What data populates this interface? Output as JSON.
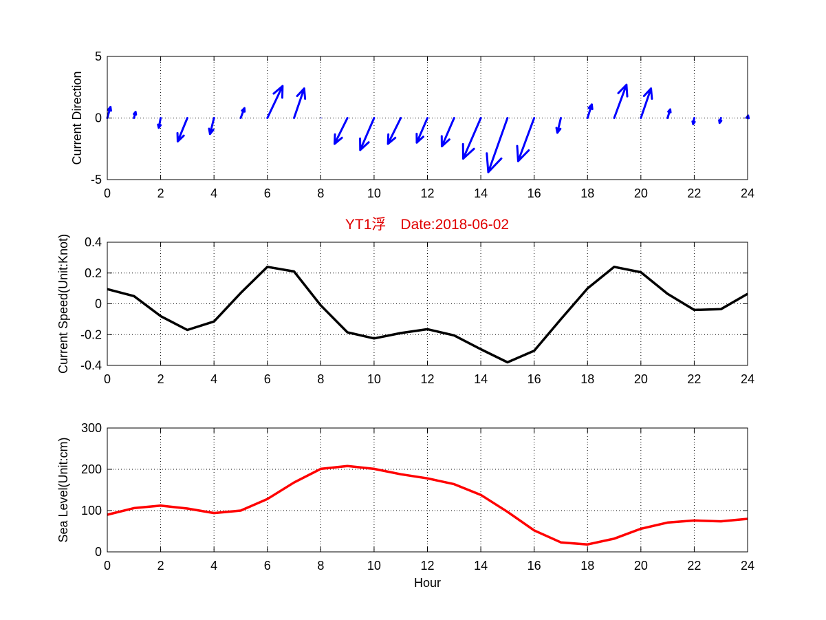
{
  "figure": {
    "title": "YT1浮　Date:2018-06-02",
    "title_color": "#e00000"
  },
  "chart_data": [
    {
      "type": "quiver",
      "title": "",
      "xlabel": "",
      "ylabel": "Current Direction",
      "xlim": [
        0,
        24
      ],
      "ylim": [
        -5,
        5
      ],
      "xticks": [
        "0",
        "2",
        "4",
        "6",
        "8",
        "10",
        "12",
        "14",
        "16",
        "18",
        "20",
        "22",
        "24"
      ],
      "yticks": [
        "-5",
        "0",
        "5"
      ],
      "grid": true,
      "color": "#0000ff",
      "x": [
        0,
        1,
        2,
        3,
        4,
        5,
        6,
        7,
        8,
        9,
        10,
        11,
        12,
        13,
        14,
        15,
        16,
        17,
        18,
        19,
        20,
        21,
        22,
        23,
        24
      ],
      "u": [
        0.12,
        0.06,
        -0.07,
        -0.36,
        -0.15,
        0.14,
        0.57,
        0.38,
        0.0,
        -0.48,
        -0.52,
        -0.48,
        -0.4,
        -0.46,
        -0.66,
        -0.72,
        -0.6,
        -0.13,
        0.16,
        0.46,
        0.38,
        0.1,
        -0.04,
        -0.05,
        0.02
      ],
      "v": [
        0.9,
        0.5,
        -0.8,
        -1.9,
        -1.3,
        0.8,
        2.6,
        2.4,
        0.0,
        -2.1,
        -2.6,
        -2.1,
        -2.0,
        -2.3,
        -3.3,
        -4.4,
        -3.5,
        -1.2,
        1.1,
        2.7,
        2.4,
        0.7,
        -0.5,
        -0.4,
        0.2
      ]
    },
    {
      "type": "line",
      "title": "",
      "xlabel": "",
      "ylabel": "Current Speed(Unit:Knot)",
      "xlim": [
        0,
        24
      ],
      "ylim": [
        -0.4,
        0.4
      ],
      "xticks": [
        "0",
        "2",
        "4",
        "6",
        "8",
        "10",
        "12",
        "14",
        "16",
        "18",
        "20",
        "22",
        "24"
      ],
      "yticks": [
        "-0.4",
        "-0.2",
        "0",
        "0.2",
        "0.4"
      ],
      "grid": true,
      "color": "#000000",
      "x": [
        0,
        1,
        2,
        3,
        4,
        5,
        6,
        7,
        8,
        9,
        10,
        11,
        12,
        13,
        14,
        15,
        16,
        17,
        18,
        19,
        20,
        21,
        22,
        23,
        24
      ],
      "y": [
        0.095,
        0.05,
        -0.08,
        -0.17,
        -0.115,
        0.07,
        0.24,
        0.21,
        -0.01,
        -0.185,
        -0.225,
        -0.19,
        -0.165,
        -0.205,
        -0.295,
        -0.38,
        -0.305,
        -0.1,
        0.1,
        0.24,
        0.205,
        0.065,
        -0.04,
        -0.035,
        0.065
      ]
    },
    {
      "type": "line",
      "title": "",
      "xlabel": "Hour",
      "ylabel": "Sea Level(Unit:cm)",
      "xlim": [
        0,
        24
      ],
      "ylim": [
        0,
        300
      ],
      "xticks": [
        "0",
        "2",
        "4",
        "6",
        "8",
        "10",
        "12",
        "14",
        "16",
        "18",
        "20",
        "22",
        "24"
      ],
      "yticks": [
        "0",
        "100",
        "200",
        "300"
      ],
      "grid": true,
      "color": "#ff0000",
      "x": [
        0,
        1,
        2,
        3,
        4,
        5,
        6,
        7,
        8,
        9,
        10,
        11,
        12,
        13,
        14,
        15,
        16,
        17,
        18,
        19,
        20,
        21,
        22,
        23,
        24
      ],
      "y": [
        90,
        106,
        112,
        105,
        94,
        100,
        128,
        168,
        201,
        208,
        201,
        188,
        178,
        164,
        138,
        97,
        52,
        23,
        18,
        32,
        56,
        71,
        76,
        74,
        80
      ]
    }
  ]
}
